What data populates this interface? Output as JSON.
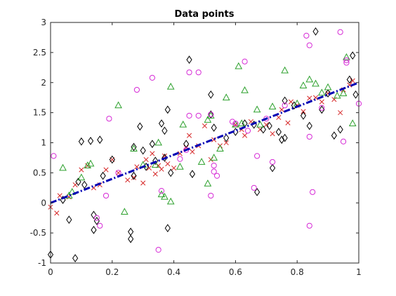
{
  "chart_data": {
    "type": "scatter",
    "title": "Data points",
    "xlabel": "",
    "ylabel": "",
    "xlim": [
      0,
      1
    ],
    "ylim": [
      -1,
      3
    ],
    "xticks": [
      0,
      0.2,
      0.4,
      0.6,
      0.8,
      1
    ],
    "xtick_labels": [
      "0",
      "0.2",
      "0.4",
      "0.6",
      "0.8",
      "1"
    ],
    "yticks": [
      -1,
      -0.5,
      0,
      0.5,
      1,
      1.5,
      2,
      2.5,
      3
    ],
    "ytick_labels": [
      "-1",
      "-0.5",
      "0",
      "0.5",
      "1",
      "1.5",
      "2",
      "2.5",
      "3"
    ],
    "grid": false,
    "box": true,
    "series": [
      {
        "marker": "x",
        "color": "#d62728",
        "points": [
          [
            0.0,
            -0.07
          ],
          [
            0.02,
            -0.17
          ],
          [
            0.03,
            0.12
          ],
          [
            0.06,
            0.1
          ],
          [
            0.08,
            0.3
          ],
          [
            0.1,
            0.55
          ],
          [
            0.12,
            0.62
          ],
          [
            0.14,
            0.25
          ],
          [
            0.16,
            0.3
          ],
          [
            0.18,
            0.55
          ],
          [
            0.2,
            0.72
          ],
          [
            0.22,
            0.5
          ],
          [
            0.25,
            0.38
          ],
          [
            0.27,
            0.42
          ],
          [
            0.28,
            0.6
          ],
          [
            0.3,
            0.33
          ],
          [
            0.31,
            0.72
          ],
          [
            0.32,
            0.58
          ],
          [
            0.33,
            0.82
          ],
          [
            0.34,
            0.48
          ],
          [
            0.35,
            0.62
          ],
          [
            0.36,
            0.56
          ],
          [
            0.37,
            0.78
          ],
          [
            0.38,
            0.65
          ],
          [
            0.4,
            0.58
          ],
          [
            0.42,
            0.82
          ],
          [
            0.44,
            0.92
          ],
          [
            0.45,
            1.12
          ],
          [
            0.46,
            0.85
          ],
          [
            0.48,
            0.95
          ],
          [
            0.5,
            1.28
          ],
          [
            0.52,
            0.72
          ],
          [
            0.53,
            1.05
          ],
          [
            0.55,
            0.95
          ],
          [
            0.57,
            1.0
          ],
          [
            0.6,
            1.3
          ],
          [
            0.62,
            1.22
          ],
          [
            0.63,
            1.12
          ],
          [
            0.65,
            1.35
          ],
          [
            0.68,
            1.22
          ],
          [
            0.7,
            1.3
          ],
          [
            0.72,
            1.15
          ],
          [
            0.74,
            1.42
          ],
          [
            0.75,
            1.55
          ],
          [
            0.77,
            1.33
          ],
          [
            0.78,
            1.68
          ],
          [
            0.8,
            1.62
          ],
          [
            0.82,
            1.52
          ],
          [
            0.84,
            1.74
          ],
          [
            0.86,
            1.75
          ],
          [
            0.88,
            1.68
          ],
          [
            0.9,
            1.82
          ],
          [
            0.92,
            1.72
          ],
          [
            0.94,
            1.5
          ],
          [
            0.95,
            1.88
          ],
          [
            0.97,
            1.96
          ],
          [
            0.98,
            2.03
          ]
        ]
      },
      {
        "marker": "diamond",
        "color": "#000000",
        "points": [
          [
            0.0,
            -0.86
          ],
          [
            0.04,
            0.05
          ],
          [
            0.06,
            -0.28
          ],
          [
            0.08,
            -0.92
          ],
          [
            0.09,
            0.35
          ],
          [
            0.1,
            1.02
          ],
          [
            0.11,
            0.3
          ],
          [
            0.13,
            1.03
          ],
          [
            0.14,
            -0.2
          ],
          [
            0.14,
            -0.45
          ],
          [
            0.15,
            -0.3
          ],
          [
            0.16,
            1.05
          ],
          [
            0.17,
            0.45
          ],
          [
            0.2,
            0.72
          ],
          [
            0.26,
            -0.48
          ],
          [
            0.26,
            -0.6
          ],
          [
            0.27,
            0.45
          ],
          [
            0.27,
            0.93
          ],
          [
            0.29,
            1.27
          ],
          [
            0.3,
            0.87
          ],
          [
            0.31,
            0.6
          ],
          [
            0.33,
            0.98
          ],
          [
            0.34,
            0.7
          ],
          [
            0.36,
            1.32
          ],
          [
            0.37,
            1.2
          ],
          [
            0.37,
            0.75
          ],
          [
            0.38,
            1.55
          ],
          [
            0.38,
            -0.42
          ],
          [
            0.39,
            0.5
          ],
          [
            0.44,
            0.98
          ],
          [
            0.45,
            2.38
          ],
          [
            0.46,
            0.48
          ],
          [
            0.52,
            1.8
          ],
          [
            0.52,
            1.47
          ],
          [
            0.53,
            1.25
          ],
          [
            0.57,
            1.08
          ],
          [
            0.6,
            1.18
          ],
          [
            0.63,
            1.32
          ],
          [
            0.66,
            1.3
          ],
          [
            0.67,
            0.18
          ],
          [
            0.69,
            1.22
          ],
          [
            0.71,
            1.28
          ],
          [
            0.72,
            0.58
          ],
          [
            0.74,
            1.18
          ],
          [
            0.75,
            1.05
          ],
          [
            0.76,
            1.08
          ],
          [
            0.76,
            1.7
          ],
          [
            0.79,
            1.62
          ],
          [
            0.82,
            1.45
          ],
          [
            0.84,
            1.28
          ],
          [
            0.86,
            2.85
          ],
          [
            0.88,
            1.55
          ],
          [
            0.9,
            1.82
          ],
          [
            0.92,
            1.12
          ],
          [
            0.94,
            1.22
          ],
          [
            0.97,
            2.05
          ],
          [
            0.98,
            2.45
          ],
          [
            0.99,
            1.8
          ]
        ]
      },
      {
        "marker": "triangle",
        "color": "#2ca02c",
        "points": [
          [
            0.04,
            0.58
          ],
          [
            0.06,
            0.12
          ],
          [
            0.07,
            0.18
          ],
          [
            0.1,
            0.42
          ],
          [
            0.12,
            0.62
          ],
          [
            0.13,
            0.65
          ],
          [
            0.22,
            1.62
          ],
          [
            0.24,
            -0.15
          ],
          [
            0.27,
            0.9
          ],
          [
            0.3,
            0.63
          ],
          [
            0.34,
            0.63
          ],
          [
            0.35,
            1.0
          ],
          [
            0.36,
            0.14
          ],
          [
            0.37,
            0.1
          ],
          [
            0.39,
            0.02
          ],
          [
            0.39,
            1.93
          ],
          [
            0.42,
            0.6
          ],
          [
            0.43,
            1.3
          ],
          [
            0.49,
            0.68
          ],
          [
            0.51,
            1.38
          ],
          [
            0.51,
            0.32
          ],
          [
            0.52,
            1.45
          ],
          [
            0.53,
            0.75
          ],
          [
            0.55,
            0.9
          ],
          [
            0.57,
            1.75
          ],
          [
            0.6,
            1.3
          ],
          [
            0.61,
            2.27
          ],
          [
            0.62,
            1.32
          ],
          [
            0.63,
            1.87
          ],
          [
            0.67,
            1.55
          ],
          [
            0.68,
            1.3
          ],
          [
            0.72,
            1.6
          ],
          [
            0.76,
            2.2
          ],
          [
            0.8,
            1.65
          ],
          [
            0.82,
            1.95
          ],
          [
            0.84,
            2.05
          ],
          [
            0.86,
            1.98
          ],
          [
            0.88,
            1.83
          ],
          [
            0.9,
            1.92
          ],
          [
            0.93,
            1.78
          ],
          [
            0.95,
            1.82
          ],
          [
            0.96,
            2.42
          ],
          [
            0.98,
            1.32
          ]
        ]
      },
      {
        "marker": "circle",
        "color": "#d62ad6",
        "points": [
          [
            0.01,
            0.78
          ],
          [
            0.15,
            -0.25
          ],
          [
            0.16,
            -0.38
          ],
          [
            0.18,
            0.12
          ],
          [
            0.19,
            1.4
          ],
          [
            0.22,
            0.5
          ],
          [
            0.28,
            1.88
          ],
          [
            0.33,
            2.08
          ],
          [
            0.35,
            -0.78
          ],
          [
            0.36,
            0.2
          ],
          [
            0.42,
            0.73
          ],
          [
            0.44,
            0.88
          ],
          [
            0.45,
            1.45
          ],
          [
            0.45,
            2.17
          ],
          [
            0.48,
            1.45
          ],
          [
            0.48,
            2.17
          ],
          [
            0.52,
            1.47
          ],
          [
            0.52,
            0.12
          ],
          [
            0.53,
            0.62
          ],
          [
            0.53,
            0.52
          ],
          [
            0.54,
            0.45
          ],
          [
            0.59,
            1.35
          ],
          [
            0.6,
            1.32
          ],
          [
            0.63,
            2.35
          ],
          [
            0.64,
            1.2
          ],
          [
            0.66,
            0.25
          ],
          [
            0.67,
            0.78
          ],
          [
            0.7,
            1.4
          ],
          [
            0.72,
            0.68
          ],
          [
            0.76,
            1.62
          ],
          [
            0.83,
            2.78
          ],
          [
            0.84,
            2.62
          ],
          [
            0.84,
            1.1
          ],
          [
            0.85,
            0.18
          ],
          [
            0.84,
            -0.38
          ],
          [
            0.88,
            1.58
          ],
          [
            0.94,
            2.84
          ],
          [
            0.96,
            2.37
          ],
          [
            0.96,
            2.33
          ],
          [
            0.95,
            1.02
          ],
          [
            1.0,
            1.65
          ]
        ]
      },
      {
        "marker": "line",
        "color": "#0000b4",
        "line_style": "dash-dot",
        "points": [
          [
            0,
            0
          ],
          [
            1,
            2
          ]
        ]
      }
    ]
  }
}
